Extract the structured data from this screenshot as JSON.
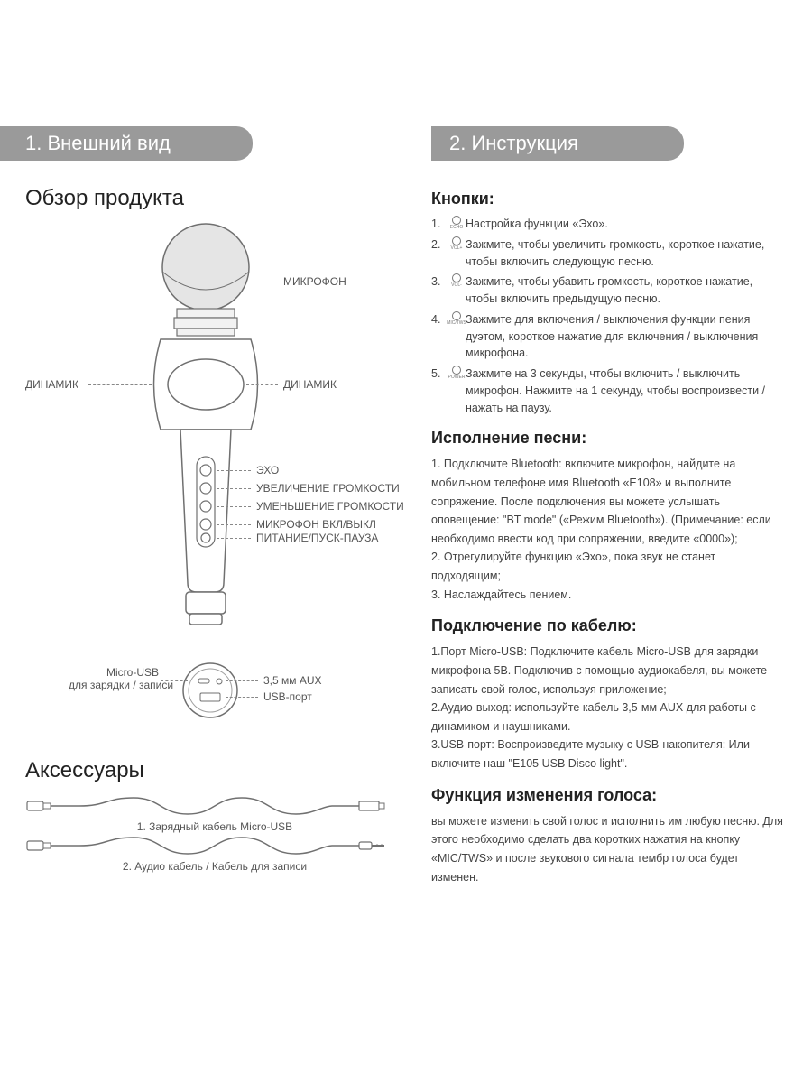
{
  "left": {
    "header": "1. Внешний вид",
    "overview_title": "Обзор продукта",
    "labels": {
      "microphone": "МИКРОФОН",
      "speaker_left": "ДИНАМИК",
      "speaker_right": "ДИНАМИК",
      "echo": "ЭХО",
      "vol_up": "УВЕЛИЧЕНИЕ ГРОМКОСТИ",
      "vol_down": "УМЕНЬШЕНИЕ ГРОМКОСТИ",
      "mic_onoff": "МИКРОФОН ВКЛ/ВЫКЛ",
      "power": "ПИТАНИЕ/ПУСК-ПАУЗА"
    },
    "bottom": {
      "microusb_l1": "Micro-USB",
      "microusb_l2": "для зарядки / записи",
      "aux": "3,5 мм AUX",
      "usb": "USB-порт"
    },
    "accessories_title": "Аксессуары",
    "cable1": "1. Зарядный кабель Micro-USB",
    "cable2": "2. Аудио кабель / Кабель для записи"
  },
  "right": {
    "header": "2. Инструкция",
    "buttons_title": "Кнопки:",
    "buttons": [
      {
        "icon": "ECHO",
        "text": "Настройка функции «Эхо»."
      },
      {
        "icon": "VOL+",
        "text": "Зажмите, чтобы увеличить громкость, короткое нажатие, чтобы включить следующую песню."
      },
      {
        "icon": "VOL-",
        "text": "Зажмите, чтобы убавить громкость, короткое нажатие, чтобы включить предыдущую песню."
      },
      {
        "icon": "MIC/TWS",
        "text": "Зажмите для включения / выключения функции пения дуэтом, короткое нажатие для включения / выключения микрофона."
      },
      {
        "icon": "POWER",
        "text": "Зажмите на 3 секунды, чтобы включить / выключить микрофон. Нажмите на 1 секунду, чтобы воспроизвести / нажать на паузу."
      }
    ],
    "song_title": "Исполнение песни:",
    "song_text": "1. Подключите Bluetooth: включите микрофон, найдите на мобильном телефоне имя Bluetooth «E108» и выполните сопряжение. После подключения вы можете услышать оповещение: \"BT mode\" («Режим Bluetooth»). (Примечание: если необходимо ввести код при сопряжении, введите «0000»);\n2. Отрегулируйте функцию «Эхо», пока звук не станет подходящим;\n3. Наслаждайтесь пением.",
    "cable_title": "Подключение по кабелю:",
    "cable_text": "1.Порт Micro-USB: Подключите кабель Micro-USB для зарядки микрофона 5В. Подключив с помощью аудиокабеля, вы можете записать свой голос, используя приложение;\n2.Аудио-выход: используйте кабель 3,5-мм AUX для работы с динамиком и наушниками.\n3.USB-порт: Воспроизведите музыку с USB-накопителя: Или включите наш \"E105 USB Disco light\".",
    "voice_title": "Функция изменения голоса:",
    "voice_text": "вы можете изменить свой голос и исполнить им любую песню. Для этого необходимо сделать два коротких нажатия на кнопку «MIC/TWS» и после звукового сигнала тембр голоса будет изменен."
  },
  "colors": {
    "header_bg": "#9a9a9a",
    "header_text": "#ffffff",
    "text": "#444444",
    "leader": "#888888"
  }
}
